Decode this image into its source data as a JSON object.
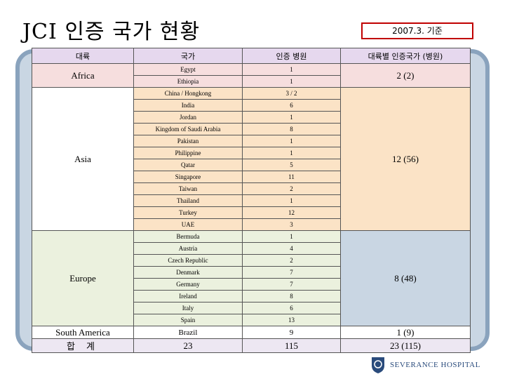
{
  "header": {
    "title": "JCI 인증 국가 현황",
    "date": "2007.3. 기준"
  },
  "table": {
    "columns": [
      "대륙",
      "국가",
      "인증 병원",
      "대륙별 인증국가 (병원)"
    ],
    "groups": [
      {
        "continent": "Africa",
        "summary": "2 (2)",
        "rows": [
          [
            "Egypt",
            "1"
          ],
          [
            "Ethiopia",
            "1"
          ]
        ]
      },
      {
        "continent": "Asia",
        "summary": "12 (56)",
        "rows": [
          [
            "China / Hongkong",
            "3 / 2"
          ],
          [
            "India",
            "6"
          ],
          [
            "Jordan",
            "1"
          ],
          [
            "Kingdom of Saudi Arabia",
            "8"
          ],
          [
            "Pakistan",
            "1"
          ],
          [
            "Philippine",
            "1"
          ],
          [
            "Qatar",
            "5"
          ],
          [
            "Singapore",
            "11"
          ],
          [
            "Taiwan",
            "2"
          ],
          [
            "Thailand",
            "1"
          ],
          [
            "Turkey",
            "12"
          ],
          [
            "UAE",
            "3"
          ]
        ]
      },
      {
        "continent": "Europe",
        "summary": "8 (48)",
        "rows": [
          [
            "Bermuda",
            "1"
          ],
          [
            "Austria",
            "4"
          ],
          [
            "Czech Republic",
            "2"
          ],
          [
            "Denmark",
            "7"
          ],
          [
            "Germany",
            "7"
          ],
          [
            "Ireland",
            "8"
          ],
          [
            "Italy",
            "6"
          ],
          [
            "Spain",
            "13"
          ]
        ]
      },
      {
        "continent": "South America",
        "summary": "1 (9)",
        "rows": [
          [
            "Brazil",
            "9"
          ]
        ]
      }
    ],
    "total": [
      "합 계",
      "23",
      "115",
      "23 (115)"
    ]
  },
  "footer": {
    "logo": "SEVERANCE HOSPITAL"
  }
}
